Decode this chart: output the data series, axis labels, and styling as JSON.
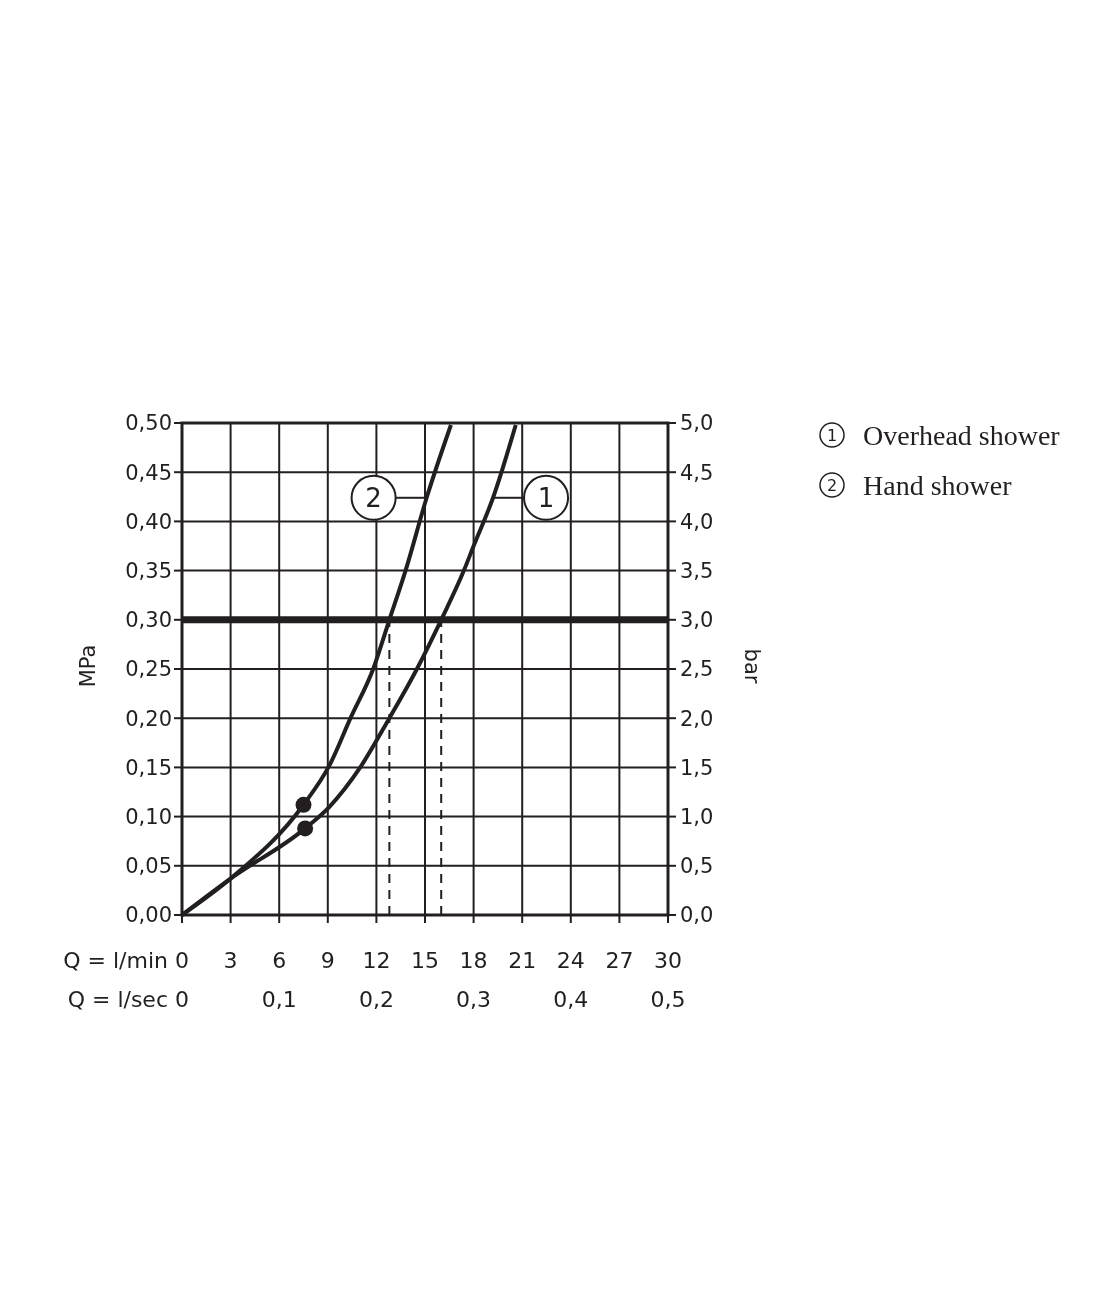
{
  "chart_data": {
    "type": "line",
    "xlabel": "Q = l/min",
    "x2label": "Q = l/sec",
    "ylabel": "MPa",
    "y2label": "bar",
    "xlim": [
      0,
      30
    ],
    "xticks": [
      0,
      3,
      6,
      9,
      12,
      15,
      18,
      21,
      24,
      27,
      30
    ],
    "x2lim": [
      0,
      0.5
    ],
    "x2ticks": [
      0,
      {
        "value": 0.1,
        "label": "0,1"
      },
      {
        "value": 0.2,
        "label": "0,2"
      },
      {
        "value": 0.3,
        "label": "0,3"
      },
      {
        "value": 0.4,
        "label": "0,4"
      },
      {
        "value": 0.5,
        "label": "0,5"
      }
    ],
    "ylim": [
      0,
      0.5
    ],
    "yticks": [
      {
        "value": 0,
        "label": "0,00"
      },
      {
        "value": 0.05,
        "label": "0,05"
      },
      {
        "value": 0.1,
        "label": "0,10"
      },
      {
        "value": 0.15,
        "label": "0,15"
      },
      {
        "value": 0.2,
        "label": "0,20"
      },
      {
        "value": 0.25,
        "label": "0,25"
      },
      {
        "value": 0.3,
        "label": "0,30"
      },
      {
        "value": 0.35,
        "label": "0,35"
      },
      {
        "value": 0.4,
        "label": "0,40"
      },
      {
        "value": 0.45,
        "label": "0,45"
      },
      {
        "value": 0.5,
        "label": "0,50"
      }
    ],
    "y2lim": [
      0,
      5
    ],
    "y2ticks": [
      {
        "value": 0,
        "label": "0,0"
      },
      {
        "value": 0.5,
        "label": "0,5"
      },
      {
        "value": 1,
        "label": "1,0"
      },
      {
        "value": 1.5,
        "label": "1,5"
      },
      {
        "value": 2,
        "label": "2,0"
      },
      {
        "value": 2.5,
        "label": "2,5"
      },
      {
        "value": 3,
        "label": "3,0"
      },
      {
        "value": 3.5,
        "label": "3,5"
      },
      {
        "value": 4,
        "label": "4,0"
      },
      {
        "value": 4.5,
        "label": "4,5"
      },
      {
        "value": 5,
        "label": "5,0"
      }
    ],
    "grid": true,
    "legend": "right",
    "marker": "none",
    "line_style": "solid",
    "series": [
      {
        "name": "Overhead shower",
        "color": "#231f20",
        "x": [
          0,
          3,
          7.6,
          9.1,
          11,
          12.8,
          14.5,
          16,
          17.4,
          18,
          19.2,
          20.6
        ],
        "values": [
          0,
          0.037,
          0.088,
          0.11,
          0.15,
          0.2,
          0.25,
          0.3,
          0.35,
          0.375,
          0.424,
          0.498
        ]
      },
      {
        "name": "Hand shower",
        "color": "#231f20",
        "x": [
          0,
          3,
          7.5,
          9.1,
          10.4,
          11.8,
          12.8,
          13.8,
          15.1,
          16.6
        ],
        "values": [
          0,
          0.037,
          0.112,
          0.152,
          0.2,
          0.25,
          0.3,
          0.35,
          0.424,
          0.498
        ]
      },
      {
        "type": "scatter",
        "marker": "circle",
        "color": "#231f20",
        "x": [
          7.5,
          7.6
        ],
        "values": [
          0.112,
          0.088
        ]
      }
    ],
    "ref_lines": [
      {
        "axis": "y",
        "value": 0.3,
        "color": "#231f20",
        "line_style": "solid"
      },
      {
        "axis": "x",
        "value": 12.8,
        "color": "#231f20",
        "line_style": "dashed"
      },
      {
        "axis": "x",
        "value": 16,
        "color": "#231f20",
        "line_style": "dashed"
      }
    ],
    "annotations": [
      {
        "text": "2",
        "x": 15.1,
        "y": 0.424
      },
      {
        "text": "1",
        "x": 19.2,
        "y": 0.424
      }
    ]
  }
}
